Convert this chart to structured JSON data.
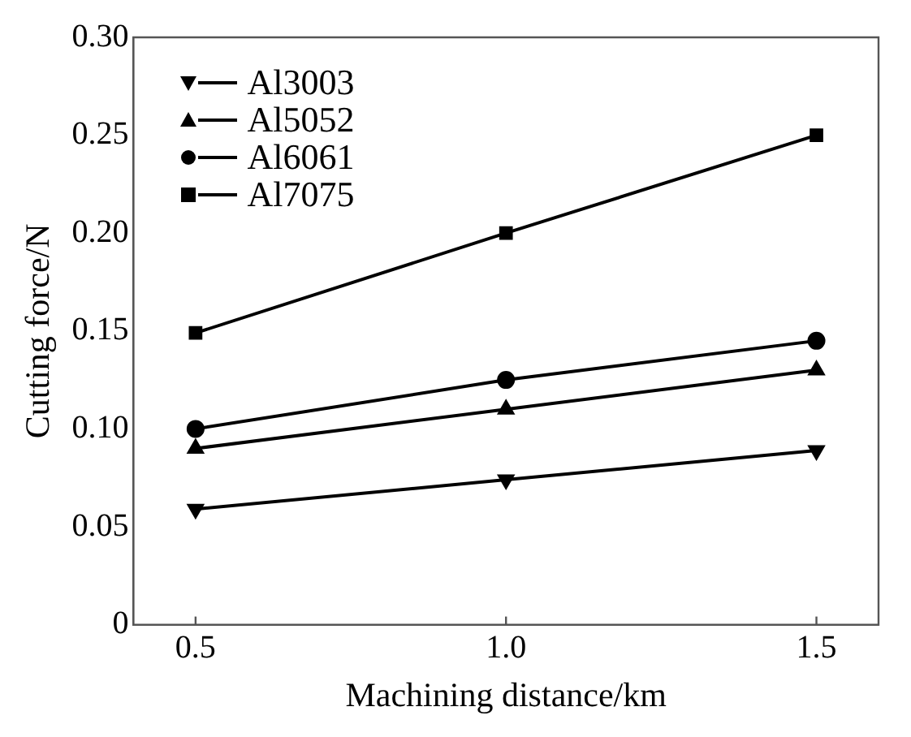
{
  "chart_data": {
    "type": "line",
    "xlabel": "Machining distance/km",
    "ylabel": "Cutting force/N",
    "x": [
      0.5,
      1.0,
      1.5
    ],
    "series": [
      {
        "name": "Al3003",
        "color": "#000000",
        "marker": "triangle-down",
        "values": [
          0.059,
          0.074,
          0.089
        ]
      },
      {
        "name": "Al5052",
        "color": "#000000",
        "marker": "triangle",
        "values": [
          0.09,
          0.11,
          0.13
        ]
      },
      {
        "name": "Al6061",
        "color": "#000000",
        "marker": "circle",
        "values": [
          0.1,
          0.125,
          0.145
        ]
      },
      {
        "name": "Al7075",
        "color": "#000000",
        "marker": "square",
        "values": [
          0.149,
          0.2,
          0.25
        ]
      }
    ],
    "xlim": [
      0.4,
      1.6
    ],
    "xticks": [
      {
        "value": 0.5,
        "label": "0.5"
      },
      {
        "value": 1.0,
        "label": "1.0"
      },
      {
        "value": 1.5,
        "label": "1.5"
      }
    ],
    "ylim": [
      0,
      0.3
    ],
    "yticks": [
      {
        "value": 0,
        "label": "0"
      },
      {
        "value": 0.05,
        "label": "0.05"
      },
      {
        "value": 0.1,
        "label": "0.10"
      },
      {
        "value": 0.15,
        "label": "0.15"
      },
      {
        "value": 0.2,
        "label": "0.20"
      },
      {
        "value": 0.25,
        "label": "0.25"
      },
      {
        "value": 0.3,
        "label": "0.30"
      }
    ],
    "grid": false,
    "legend": "top left",
    "line_style": "solid"
  }
}
